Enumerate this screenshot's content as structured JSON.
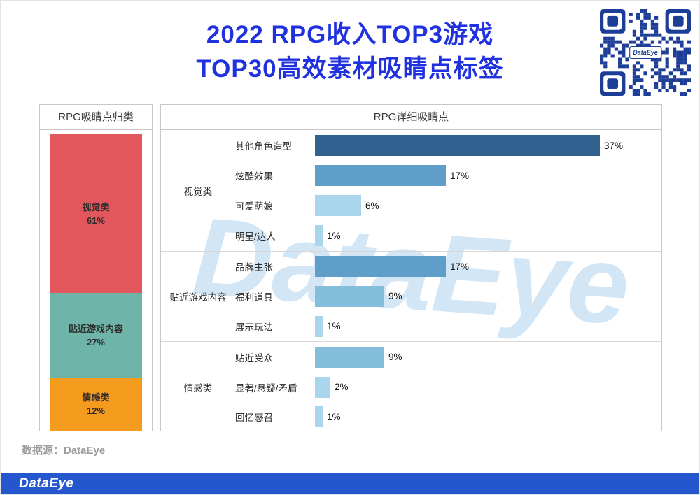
{
  "header": {
    "title_line1": "2022 RPG收入TOP3游戏",
    "title_line2": "TOP30高效素材吸睛点标签",
    "qr_label": "DataEye"
  },
  "watermark": {
    "text": "DataEye"
  },
  "left_panel": {
    "title": "RPG吸睛点归类"
  },
  "right_panel": {
    "title": "RPG详细吸睛点"
  },
  "footer": {
    "source": "数据源：DataEye",
    "logo": "DataEye"
  },
  "colors": {
    "title_blue": "#2032e0",
    "footer_blue": "#2457cd",
    "qr_blue": "#1d3e96",
    "watermark_blue": "#a9cfee"
  },
  "chart_data": [
    {
      "type": "bar",
      "subtype": "stacked-vertical",
      "title": "RPG吸睛点归类",
      "categories": [
        "视觉类",
        "贴近游戏内容",
        "情感类"
      ],
      "values": [
        61,
        27,
        12
      ],
      "value_labels": [
        "61%",
        "27%",
        "12%"
      ],
      "colors": [
        "#e2565c",
        "#6fb4a8",
        "#f59b1e"
      ],
      "ylim": [
        0,
        100
      ],
      "grid": false,
      "legend": "none"
    },
    {
      "type": "bar",
      "subtype": "horizontal-grouped",
      "title": "RPG详细吸睛点",
      "xlim": [
        0,
        40
      ],
      "grid": false,
      "legend": "none",
      "groups": [
        {
          "name": "视觉类",
          "items": [
            {
              "label": "其他角色造型",
              "value": 37,
              "value_label": "37%",
              "color": "#31618e"
            },
            {
              "label": "炫酷效果",
              "value": 17,
              "value_label": "17%",
              "color": "#5e9ec8"
            },
            {
              "label": "可爱萌娘",
              "value": 6,
              "value_label": "6%",
              "color": "#a9d6ec"
            },
            {
              "label": "明星/达人",
              "value": 1,
              "value_label": "1%",
              "color": "#a9d6ec"
            }
          ]
        },
        {
          "name": "贴近游戏内容",
          "items": [
            {
              "label": "品牌主张",
              "value": 17,
              "value_label": "17%",
              "color": "#5e9ec8"
            },
            {
              "label": "福利道具",
              "value": 9,
              "value_label": "9%",
              "color": "#85bedd"
            },
            {
              "label": "展示玩法",
              "value": 1,
              "value_label": "1%",
              "color": "#a9d6ec"
            }
          ]
        },
        {
          "name": "情感类",
          "items": [
            {
              "label": "贴近受众",
              "value": 9,
              "value_label": "9%",
              "color": "#85bedd"
            },
            {
              "label": "显著/悬疑/矛盾",
              "value": 2,
              "value_label": "2%",
              "color": "#a9d6ec"
            },
            {
              "label": "回忆感召",
              "value": 1,
              "value_label": "1%",
              "color": "#a9d6ec"
            }
          ]
        }
      ]
    }
  ]
}
